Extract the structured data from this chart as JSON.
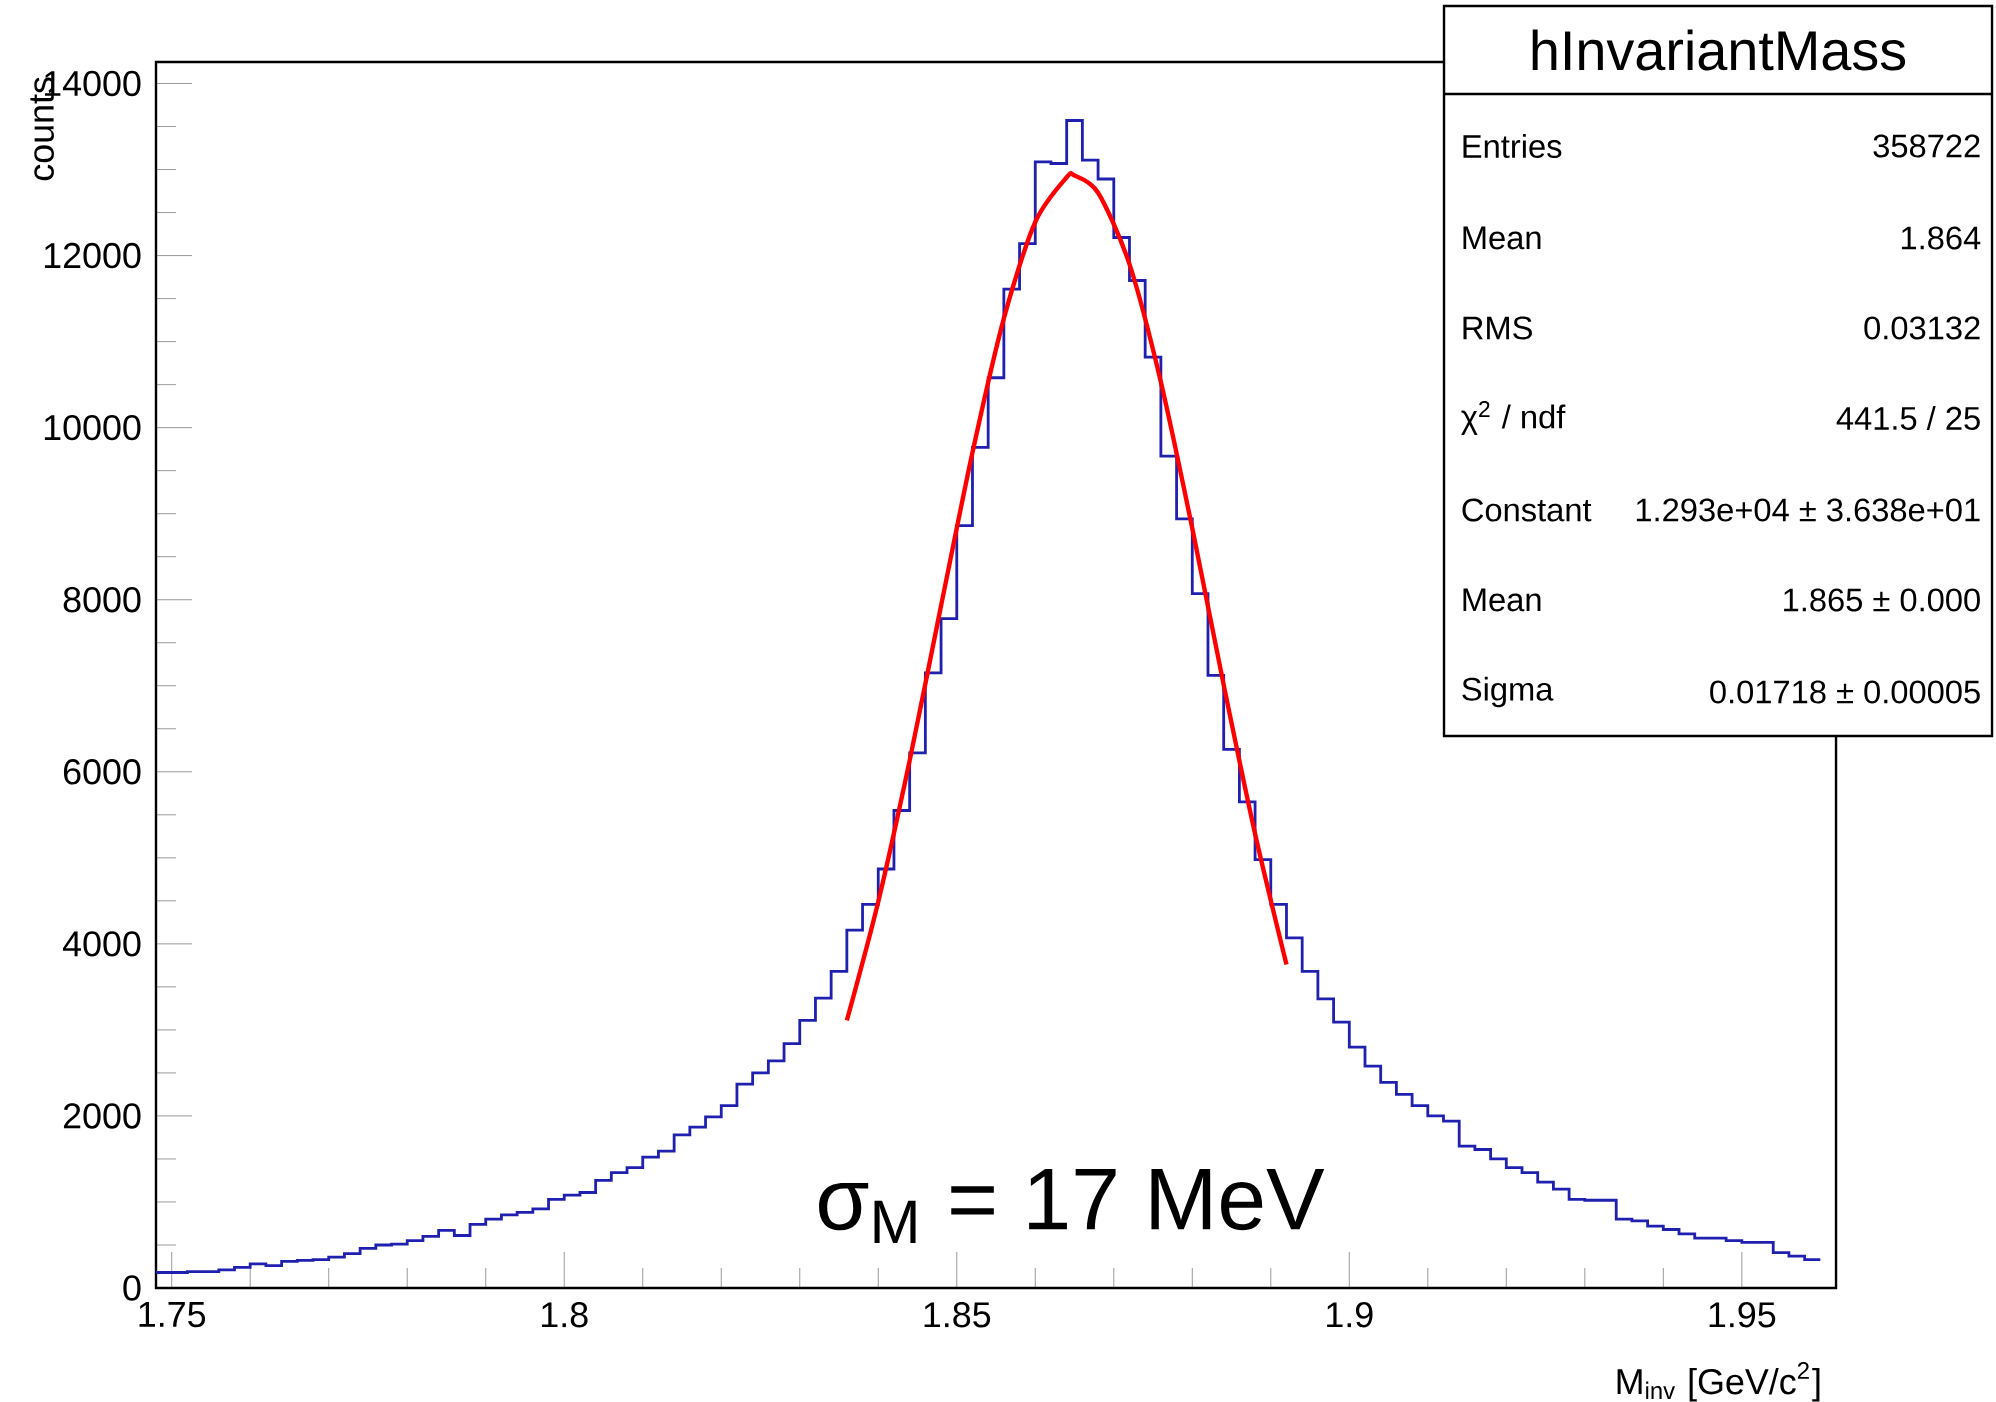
{
  "chart_data": {
    "type": "histogram",
    "xlabel": "M$_{inv}$ [GeV/c$^{2}$]",
    "ylabel": "counts",
    "xlim": [
      1.748,
      1.962
    ],
    "xticks": [
      1.75,
      1.8,
      1.85,
      1.9,
      1.95
    ],
    "ylim": [
      0,
      14250
    ],
    "yticks": [
      0,
      2000,
      4000,
      6000,
      8000,
      10000,
      12000,
      14000
    ],
    "series": [
      {
        "color": "#2020b0",
        "bins": [
          1.748,
          1.75,
          1.752,
          1.754,
          1.756,
          1.758,
          1.76,
          1.762,
          1.764,
          1.766,
          1.768,
          1.77,
          1.772,
          1.774,
          1.776,
          1.778,
          1.78,
          1.782,
          1.784,
          1.786,
          1.788,
          1.79,
          1.792,
          1.794,
          1.796,
          1.798,
          1.8,
          1.802,
          1.804,
          1.806,
          1.808,
          1.81,
          1.812,
          1.814,
          1.816,
          1.818,
          1.82,
          1.822,
          1.824,
          1.826,
          1.828,
          1.83,
          1.832,
          1.834,
          1.836,
          1.838,
          1.84,
          1.842,
          1.844,
          1.846,
          1.848,
          1.85,
          1.852,
          1.854,
          1.856,
          1.858,
          1.86,
          1.862,
          1.864,
          1.866,
          1.868,
          1.87,
          1.872,
          1.874,
          1.876,
          1.878,
          1.88,
          1.882,
          1.884,
          1.886,
          1.888,
          1.89,
          1.892,
          1.894,
          1.896,
          1.898,
          1.9,
          1.902,
          1.904,
          1.906,
          1.908,
          1.91,
          1.912,
          1.914,
          1.916,
          1.918,
          1.92,
          1.922,
          1.924,
          1.926,
          1.928,
          1.93,
          1.932,
          1.934,
          1.936,
          1.938,
          1.94,
          1.942,
          1.944,
          1.946,
          1.948,
          1.95,
          1.952,
          1.954,
          1.956,
          1.958,
          1.96
        ],
        "values": [
          180,
          180,
          190,
          190,
          210,
          240,
          280,
          260,
          310,
          320,
          330,
          360,
          400,
          460,
          500,
          510,
          550,
          600,
          670,
          610,
          740,
          800,
          850,
          880,
          920,
          1030,
          1080,
          1110,
          1250,
          1340,
          1400,
          1520,
          1590,
          1780,
          1870,
          1990,
          2120,
          2370,
          2500,
          2640,
          2840,
          3110,
          3370,
          3680,
          4160,
          4460,
          4870,
          5550,
          6220,
          7150,
          7780,
          8860,
          9770,
          10580,
          11610,
          12140,
          13090,
          13070,
          13570,
          13110,
          12890,
          12210,
          11710,
          10820,
          9670,
          8940,
          8070,
          7120,
          6260,
          5650,
          4980,
          4460,
          4070,
          3680,
          3360,
          3090,
          2800,
          2580,
          2390,
          2250,
          2120,
          2000,
          1940,
          1650,
          1610,
          1500,
          1400,
          1340,
          1230,
          1150,
          1030,
          1020,
          1020,
          800,
          780,
          720,
          680,
          630,
          580,
          580,
          550,
          530,
          530,
          410,
          370,
          330
        ]
      },
      {
        "type": "line",
        "color": "#ff0000",
        "x": [
          1.836,
          1.84,
          1.844,
          1.848,
          1.852,
          1.856,
          1.86,
          1.864,
          1.865,
          1.868,
          1.872,
          1.876,
          1.88,
          1.884,
          1.888,
          1.892
        ],
        "values": [
          3110,
          4490,
          6130,
          7930,
          9710,
          11270,
          12390,
          12910,
          12930,
          12730,
          11900,
          10530,
          8830,
          7010,
          5280,
          3760
        ]
      }
    ],
    "annotations": [
      "hInvariantMass",
      "Entries",
      "358722",
      "Mean",
      "1.864",
      "RMS",
      "0.03132",
      "χ$^{2}$ / ndf",
      "441.5 / 25",
      "Constant",
      "1.293e+04 ± 3.638e+01",
      "Mean",
      "1.865 ± 0.000",
      "Sigma",
      "0.01718 ± 0.00005",
      "σ$_{M}$ = 17 MeV"
    ]
  }
}
